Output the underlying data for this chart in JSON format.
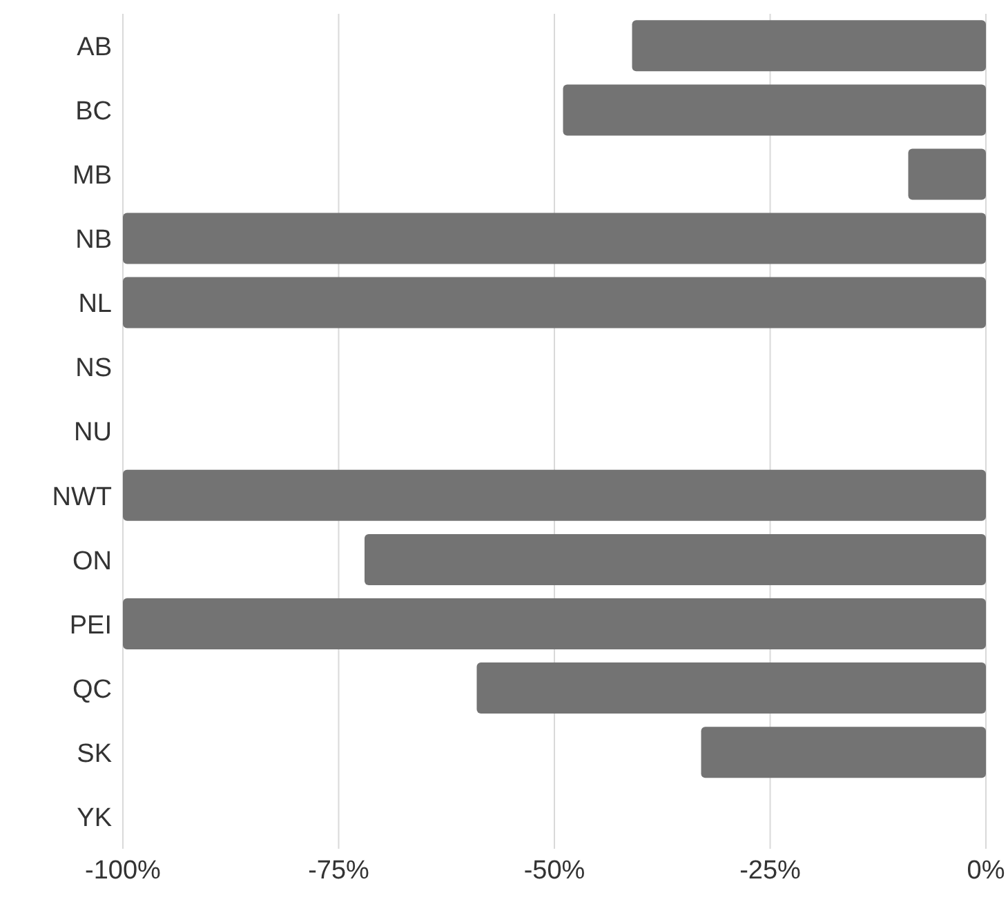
{
  "chart_data": {
    "type": "bar",
    "orientation": "horizontal",
    "categories": [
      "AB",
      "BC",
      "MB",
      "NB",
      "NL",
      "NS",
      "NU",
      "NWT",
      "ON",
      "PEI",
      "QC",
      "SK",
      "YK"
    ],
    "values": [
      -41,
      -49,
      -9,
      -100,
      -100,
      0,
      0,
      -100,
      -72,
      -100,
      -59,
      -33,
      0
    ],
    "color": "#737373",
    "xlim": [
      -100,
      0
    ],
    "xticks": [
      {
        "value": -100,
        "label": "-100%"
      },
      {
        "value": -75,
        "label": "-75%"
      },
      {
        "value": -50,
        "label": "-50%"
      },
      {
        "value": -25,
        "label": "-25%"
      },
      {
        "value": 0,
        "label": "0%"
      }
    ],
    "grid": "x"
  }
}
